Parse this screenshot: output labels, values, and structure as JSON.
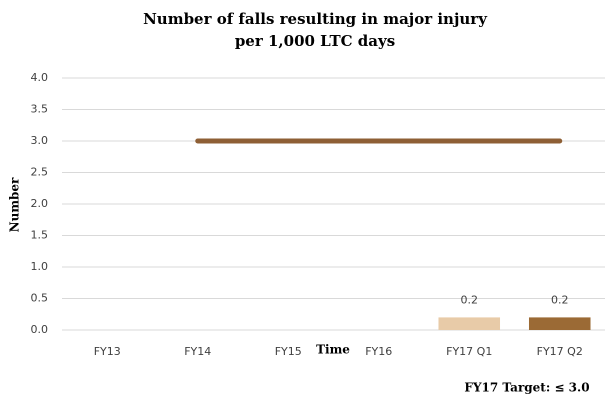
{
  "chart_data": {
    "type": "bar",
    "title": [
      "Number of falls resulting in major injury",
      "per 1,000 LTC days"
    ],
    "categories": [
      "FY13",
      "FY14",
      "FY15",
      "FY16",
      "FY17 Q1",
      "FY17 Q2"
    ],
    "series": [
      {
        "type": "bar",
        "colors": [
          "#e8cba8",
          "#e8cba8",
          "#e8cba8",
          "#e8cba8",
          "#e8cba8",
          "#9b6a35"
        ],
        "values": [
          null,
          null,
          null,
          null,
          0.2,
          0.2
        ]
      },
      {
        "type": "line",
        "color": "#8e5f35",
        "values": [
          null,
          3.0,
          3.0,
          3.0,
          3.0,
          3.0
        ]
      }
    ],
    "ylabel": "Number",
    "xlabel": "Time",
    "annotation": "FY17 Target: ≤ 3.0",
    "ylim": [
      0,
      4
    ],
    "yticks": [
      {
        "value": 0,
        "label": "0.0"
      },
      {
        "value": 0.5,
        "label": "0.5"
      },
      {
        "value": 1,
        "label": "1.0"
      },
      {
        "value": 1.5,
        "label": "1.5"
      },
      {
        "value": 2,
        "label": "2.0"
      },
      {
        "value": 2.5,
        "label": "2.5"
      },
      {
        "value": 3,
        "label": "3.0"
      },
      {
        "value": 3.5,
        "label": "3.5"
      },
      {
        "value": 4,
        "label": "4.0"
      }
    ],
    "grid": true
  }
}
